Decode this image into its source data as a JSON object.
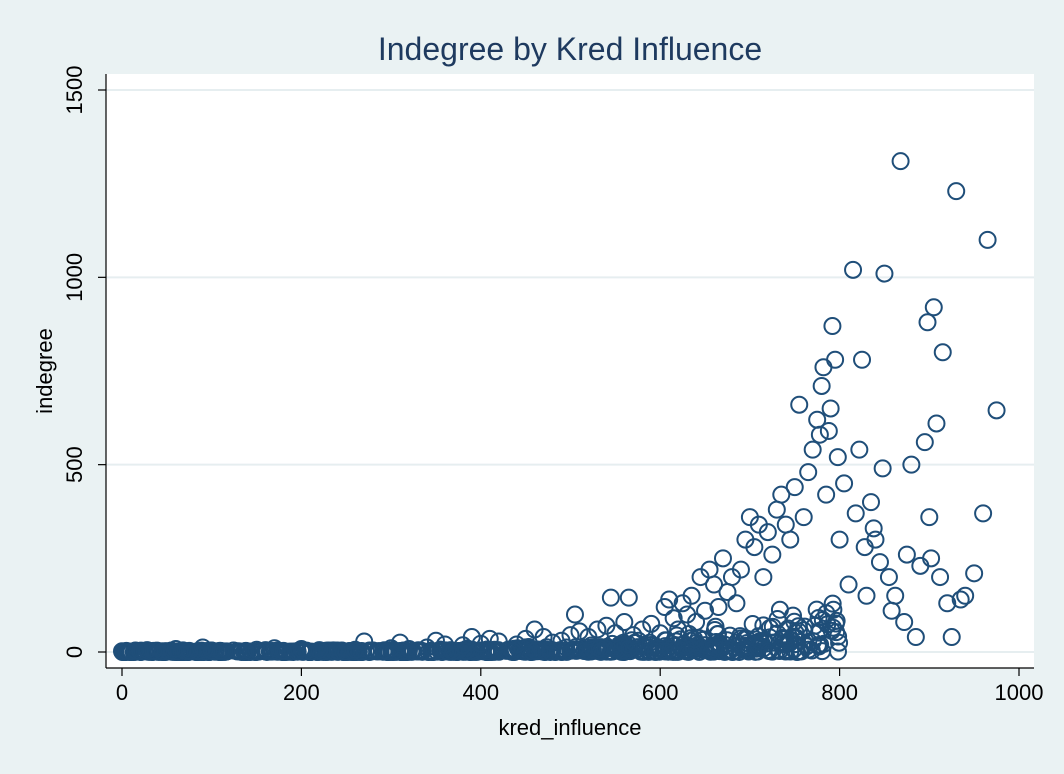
{
  "chart_data": {
    "type": "scatter",
    "title": "Indegree by Kred Influence",
    "xlabel": "kred_influence",
    "ylabel": "indegree",
    "xlim": [
      0,
      1000
    ],
    "ylim": [
      0,
      1500
    ],
    "xticks": [
      "0",
      "200",
      "400",
      "600",
      "800",
      "1000"
    ],
    "yticks": [
      "0",
      "500",
      "1000",
      "1500"
    ],
    "grid": true,
    "marker": "hollow-circle",
    "marker_color": "#1f4e79",
    "background_color": "#eaf2f3",
    "plot_background_color": "#ffffff",
    "series": [
      {
        "points": [
          [
            0,
            2
          ],
          [
            5,
            3
          ],
          [
            10,
            1
          ],
          [
            15,
            4
          ],
          [
            20,
            2
          ],
          [
            28,
            5
          ],
          [
            35,
            3
          ],
          [
            45,
            2
          ],
          [
            55,
            4
          ],
          [
            60,
            8
          ],
          [
            75,
            3
          ],
          [
            90,
            12
          ],
          [
            100,
            4
          ],
          [
            110,
            3
          ],
          [
            130,
            2
          ],
          [
            150,
            6
          ],
          [
            160,
            5
          ],
          [
            170,
            10
          ],
          [
            180,
            3
          ],
          [
            200,
            8
          ],
          [
            220,
            5
          ],
          [
            240,
            4
          ],
          [
            260,
            6
          ],
          [
            270,
            28
          ],
          [
            280,
            4
          ],
          [
            300,
            10
          ],
          [
            310,
            25
          ],
          [
            320,
            8
          ],
          [
            340,
            12
          ],
          [
            350,
            30
          ],
          [
            360,
            20
          ],
          [
            380,
            18
          ],
          [
            390,
            40
          ],
          [
            400,
            22
          ],
          [
            410,
            35
          ],
          [
            420,
            28
          ],
          [
            440,
            20
          ],
          [
            450,
            35
          ],
          [
            460,
            60
          ],
          [
            470,
            40
          ],
          [
            480,
            25
          ],
          [
            490,
            30
          ],
          [
            500,
            45
          ],
          [
            505,
            100
          ],
          [
            510,
            55
          ],
          [
            520,
            40
          ],
          [
            530,
            60
          ],
          [
            540,
            70
          ],
          [
            545,
            145
          ],
          [
            550,
            50
          ],
          [
            560,
            80
          ],
          [
            565,
            145
          ],
          [
            570,
            45
          ],
          [
            580,
            60
          ],
          [
            590,
            75
          ],
          [
            600,
            50
          ],
          [
            605,
            120
          ],
          [
            610,
            140
          ],
          [
            615,
            90
          ],
          [
            620,
            60
          ],
          [
            625,
            130
          ],
          [
            630,
            100
          ],
          [
            635,
            150
          ],
          [
            640,
            80
          ],
          [
            645,
            200
          ],
          [
            650,
            110
          ],
          [
            655,
            220
          ],
          [
            660,
            180
          ],
          [
            665,
            120
          ],
          [
            670,
            250
          ],
          [
            675,
            160
          ],
          [
            680,
            200
          ],
          [
            685,
            130
          ],
          [
            690,
            220
          ],
          [
            695,
            300
          ],
          [
            700,
            360
          ],
          [
            705,
            280
          ],
          [
            710,
            340
          ],
          [
            715,
            200
          ],
          [
            720,
            320
          ],
          [
            725,
            260
          ],
          [
            730,
            380
          ],
          [
            735,
            420
          ],
          [
            740,
            340
          ],
          [
            745,
            300
          ],
          [
            750,
            440
          ],
          [
            755,
            660
          ],
          [
            760,
            360
          ],
          [
            765,
            480
          ],
          [
            770,
            540
          ],
          [
            775,
            620
          ],
          [
            778,
            580
          ],
          [
            780,
            710
          ],
          [
            782,
            760
          ],
          [
            785,
            420
          ],
          [
            788,
            590
          ],
          [
            790,
            650
          ],
          [
            792,
            870
          ],
          [
            795,
            780
          ],
          [
            798,
            520
          ],
          [
            800,
            300
          ],
          [
            805,
            450
          ],
          [
            810,
            180
          ],
          [
            815,
            1020
          ],
          [
            818,
            370
          ],
          [
            822,
            540
          ],
          [
            825,
            780
          ],
          [
            828,
            280
          ],
          [
            830,
            150
          ],
          [
            835,
            400
          ],
          [
            838,
            330
          ],
          [
            840,
            300
          ],
          [
            845,
            240
          ],
          [
            848,
            490
          ],
          [
            850,
            1010
          ],
          [
            855,
            200
          ],
          [
            858,
            110
          ],
          [
            862,
            150
          ],
          [
            868,
            1310
          ],
          [
            872,
            80
          ],
          [
            875,
            260
          ],
          [
            880,
            500
          ],
          [
            885,
            40
          ],
          [
            890,
            230
          ],
          [
            895,
            560
          ],
          [
            898,
            880
          ],
          [
            900,
            360
          ],
          [
            902,
            250
          ],
          [
            905,
            920
          ],
          [
            908,
            610
          ],
          [
            912,
            200
          ],
          [
            915,
            800
          ],
          [
            920,
            130
          ],
          [
            925,
            40
          ],
          [
            930,
            1230
          ],
          [
            935,
            140
          ],
          [
            940,
            150
          ],
          [
            950,
            210
          ],
          [
            960,
            370
          ],
          [
            965,
            1100
          ],
          [
            975,
            645
          ]
        ]
      }
    ]
  }
}
